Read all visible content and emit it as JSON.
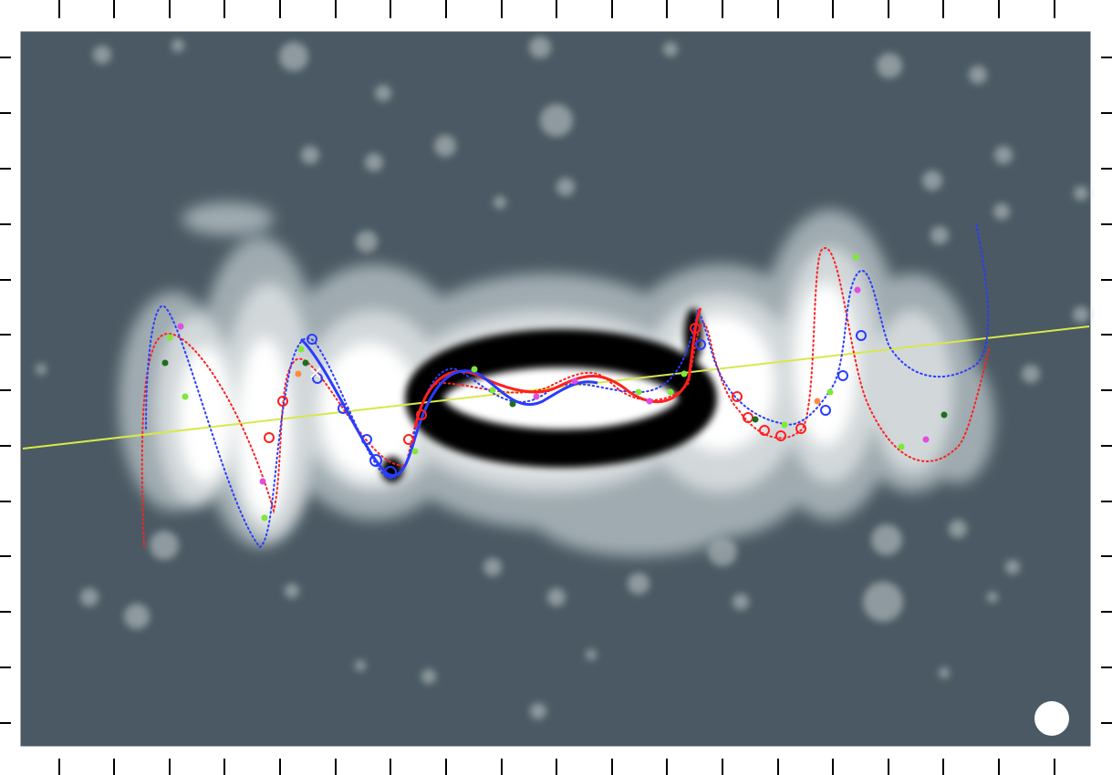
{
  "figure": {
    "background_color": "#4a5963",
    "frame_color": "#000000",
    "emission_colors": [
      "#8e9a9f",
      "#c9cfd1",
      "#ffffff",
      "#000000"
    ],
    "jet_models": [
      {
        "color": "#ff2020",
        "style": "dotted-line"
      },
      {
        "color": "#2a3cff",
        "style": "dotted-line"
      }
    ],
    "axis_line_color": "#d8e84a",
    "marker_colors": [
      "#ff2020",
      "#2a3cff",
      "#7fe83a",
      "#e04de0",
      "#1f6e1f",
      "#ff8a3a",
      "#ffffff"
    ],
    "beam_icon": "white-beam-ellipse"
  }
}
